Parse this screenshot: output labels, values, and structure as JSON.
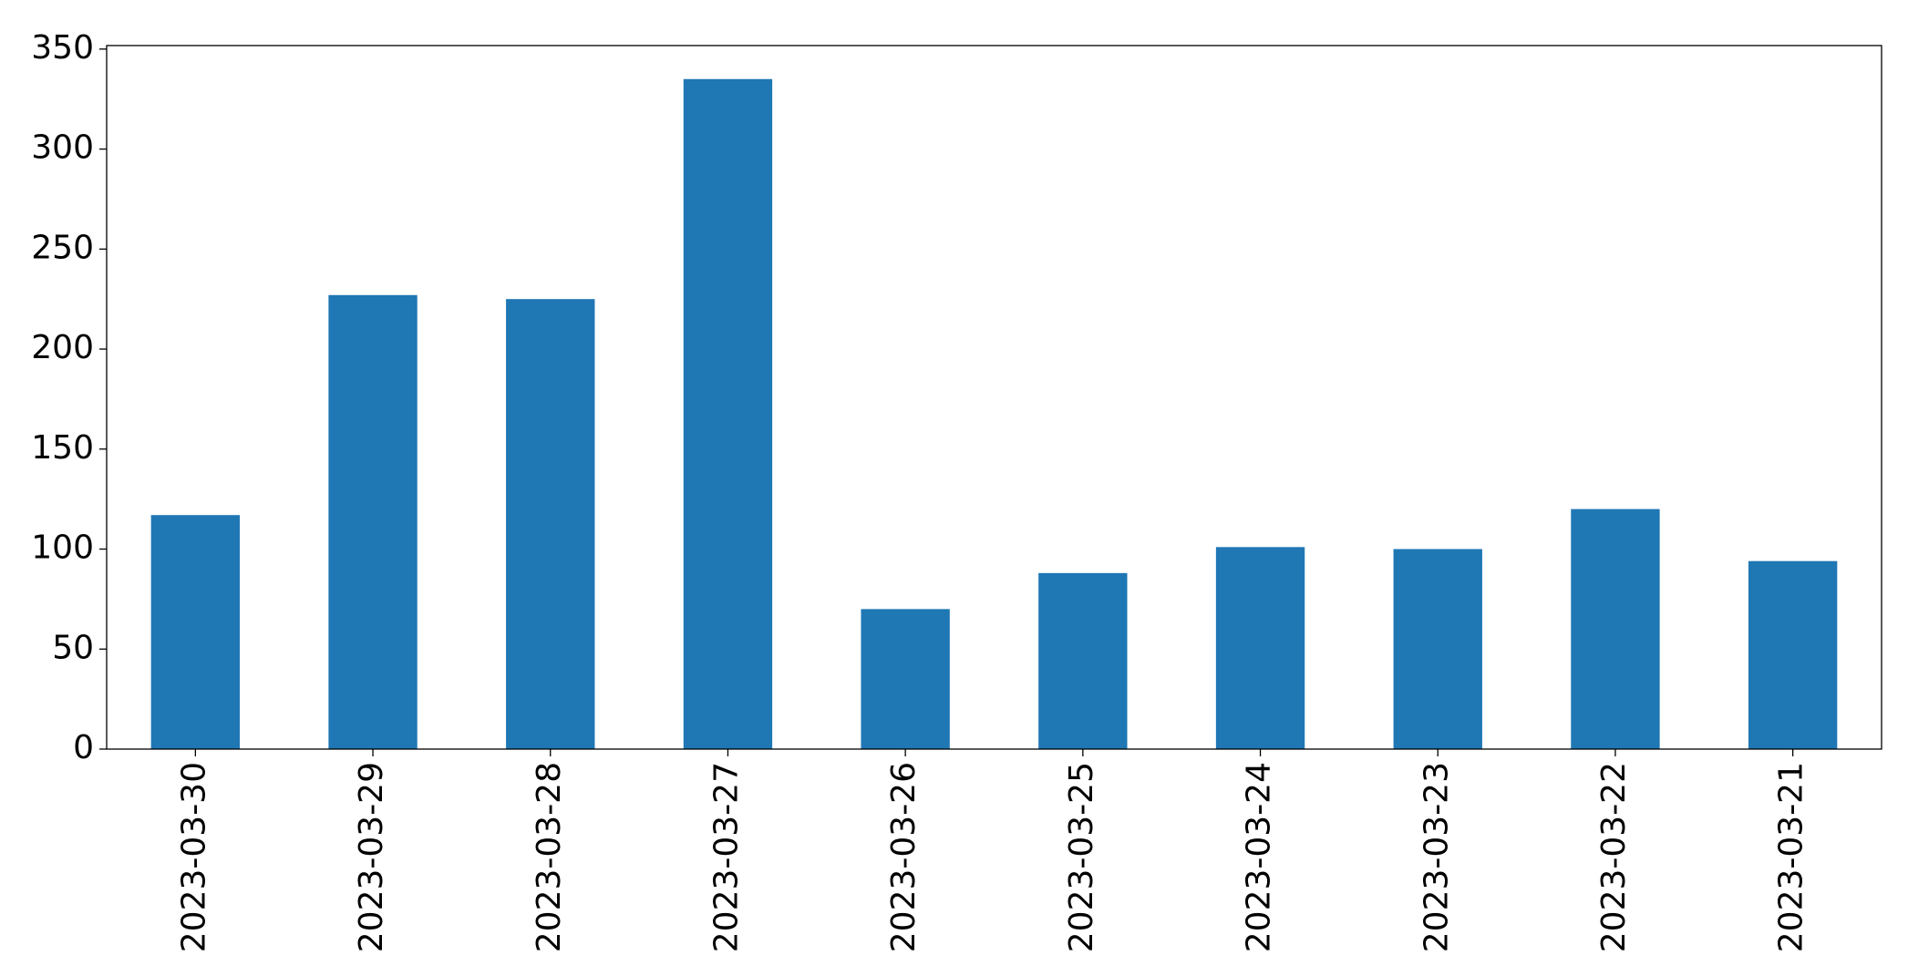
{
  "chart_data": {
    "type": "bar",
    "categories": [
      "2023-03-30",
      "2023-03-29",
      "2023-03-28",
      "2023-03-27",
      "2023-03-26",
      "2023-03-25",
      "2023-03-24",
      "2023-03-23",
      "2023-03-22",
      "2023-03-21"
    ],
    "values": [
      117,
      227,
      225,
      335,
      70,
      88,
      101,
      100,
      120,
      94
    ],
    "color": "#1f77b4",
    "ylim": [
      0,
      351.75
    ],
    "yticks": [
      0,
      50,
      100,
      150,
      200,
      250,
      300,
      350
    ],
    "grid": false
  }
}
